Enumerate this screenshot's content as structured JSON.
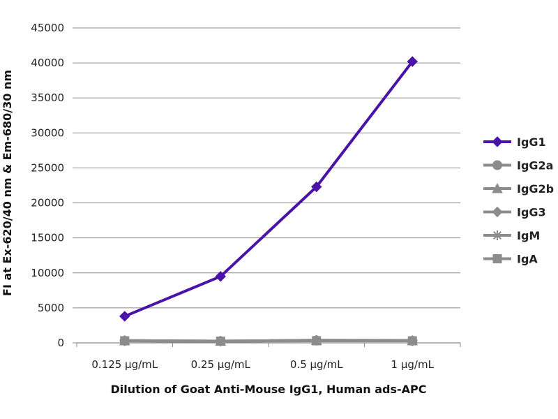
{
  "chart_data": {
    "type": "line",
    "title": "",
    "xlabel": "Dilution of Goat Anti-Mouse IgG1, Human ads-APC",
    "ylabel": "FI at Ex-620/40 nm & Em-680/30 nm",
    "categories": [
      "0.125 µg/mL",
      "0.25 µg/mL",
      "0.5 µg/mL",
      "1 µg/mL"
    ],
    "ylim": [
      0,
      45000
    ],
    "yticks": [
      0,
      5000,
      10000,
      15000,
      20000,
      25000,
      30000,
      35000,
      40000,
      45000
    ],
    "grid": true,
    "legend_position": "right",
    "series": [
      {
        "name": "IgG1",
        "values": [
          3800,
          9500,
          22300,
          40200
        ],
        "color": "#4a13a8",
        "marker": "diamond"
      },
      {
        "name": "IgG2a",
        "values": [
          300,
          250,
          350,
          300
        ],
        "color": "#8c8c8c",
        "marker": "circle"
      },
      {
        "name": "IgG2b",
        "values": [
          300,
          250,
          350,
          300
        ],
        "color": "#8c8c8c",
        "marker": "triangle"
      },
      {
        "name": "IgG3",
        "values": [
          300,
          250,
          350,
          300
        ],
        "color": "#8c8c8c",
        "marker": "diamond"
      },
      {
        "name": "IgM",
        "values": [
          350,
          200,
          400,
          350
        ],
        "color": "#8c8c8c",
        "marker": "asterisk"
      },
      {
        "name": "IgA",
        "values": [
          300,
          250,
          300,
          300
        ],
        "color": "#8c8c8c",
        "marker": "square"
      }
    ]
  }
}
